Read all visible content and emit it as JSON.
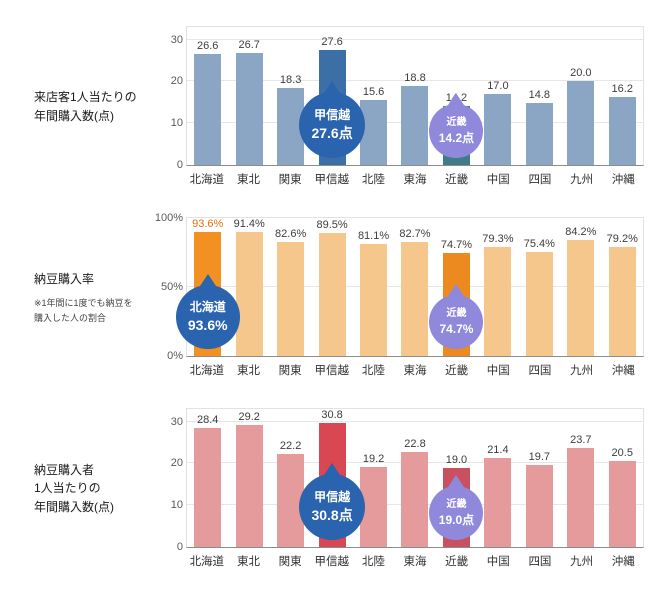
{
  "chart_data": [
    {
      "type": "bar",
      "title": "来店客1人当たりの\n年間購入数(点)",
      "categories": [
        "北海道",
        "東北",
        "関東",
        "甲信越",
        "北陸",
        "東海",
        "近畿",
        "中国",
        "四国",
        "九州",
        "沖縄"
      ],
      "values": [
        26.6,
        26.7,
        18.3,
        27.6,
        15.6,
        18.8,
        14.2,
        17.0,
        14.8,
        20.0,
        16.2
      ],
      "value_labels": [
        "26.6",
        "26.7",
        "18.3",
        "27.6",
        "15.6",
        "18.8",
        "14.2",
        "17.0",
        "14.8",
        "20.0",
        "16.2"
      ],
      "ylim": [
        0,
        33
      ],
      "yticks": [
        {
          "v": 0,
          "label": "0"
        },
        {
          "v": 10,
          "label": "10"
        },
        {
          "v": 20,
          "label": "20"
        },
        {
          "v": 30,
          "label": "30"
        }
      ],
      "bar_color": "#8BA6C4",
      "highlight_colors": {
        "3": "#3C6FA6",
        "6": "#3F7B89"
      },
      "label_overrides": {},
      "callouts": [
        {
          "index": 3,
          "name": "甲信越",
          "value_text": "27.6点",
          "color": "#2A63AE",
          "size": 66
        },
        {
          "index": 6,
          "name": "近畿",
          "value_text": "14.2点",
          "color": "#8F88DB",
          "size": 54
        }
      ]
    },
    {
      "type": "bar",
      "title": "納豆購入率",
      "note": "※1年間に1度でも納豆を\n購入した人の割合",
      "categories": [
        "北海道",
        "東北",
        "関東",
        "甲信越",
        "北陸",
        "東海",
        "近畿",
        "中国",
        "四国",
        "九州",
        "沖縄"
      ],
      "values": [
        93.6,
        91.4,
        82.6,
        89.5,
        81.1,
        82.7,
        74.7,
        79.3,
        75.4,
        84.2,
        79.2
      ],
      "value_labels": [
        "93.6%",
        "91.4%",
        "82.6%",
        "89.5%",
        "81.1%",
        "82.7%",
        "74.7%",
        "79.3%",
        "75.4%",
        "84.2%",
        "79.2%"
      ],
      "ylim": [
        0,
        100
      ],
      "yticks": [
        {
          "v": 0,
          "label": "0%"
        },
        {
          "v": 50,
          "label": "50%"
        },
        {
          "v": 100,
          "label": "100%"
        }
      ],
      "bar_color": "#F6C78C",
      "highlight_colors": {
        "0": "#F29122",
        "6": "#ED8A1F"
      },
      "label_overrides": {
        "0": "#E2700F"
      },
      "callouts": [
        {
          "index": 0,
          "name": "北海道",
          "value_text": "93.6%",
          "color": "#2A63AE",
          "size": 64
        },
        {
          "index": 6,
          "name": "近畿",
          "value_text": "74.7%",
          "color": "#8F88DB",
          "size": 54
        }
      ]
    },
    {
      "type": "bar",
      "title": "納豆購入者\n1人当たりの\n年間購入数(点)",
      "categories": [
        "北海道",
        "東北",
        "関東",
        "甲信越",
        "北陸",
        "東海",
        "近畿",
        "中国",
        "四国",
        "九州",
        "沖縄"
      ],
      "values": [
        28.4,
        29.2,
        22.2,
        30.8,
        19.2,
        22.8,
        19.0,
        21.4,
        19.7,
        23.7,
        20.5
      ],
      "value_labels": [
        "28.4",
        "29.2",
        "22.2",
        "30.8",
        "19.2",
        "22.8",
        "19.0",
        "21.4",
        "19.7",
        "23.7",
        "20.5"
      ],
      "ylim": [
        0,
        33
      ],
      "yticks": [
        {
          "v": 0,
          "label": "0"
        },
        {
          "v": 10,
          "label": "10"
        },
        {
          "v": 20,
          "label": "20"
        },
        {
          "v": 30,
          "label": "30"
        }
      ],
      "bar_color": "#E59A9C",
      "highlight_colors": {
        "3": "#D84752",
        "6": "#C9505F"
      },
      "label_overrides": {},
      "callouts": [
        {
          "index": 3,
          "name": "甲信越",
          "value_text": "30.8点",
          "color": "#2A63AE",
          "size": 66
        },
        {
          "index": 6,
          "name": "近畿",
          "value_text": "19.0点",
          "color": "#8F88DB",
          "size": 54
        }
      ]
    }
  ]
}
